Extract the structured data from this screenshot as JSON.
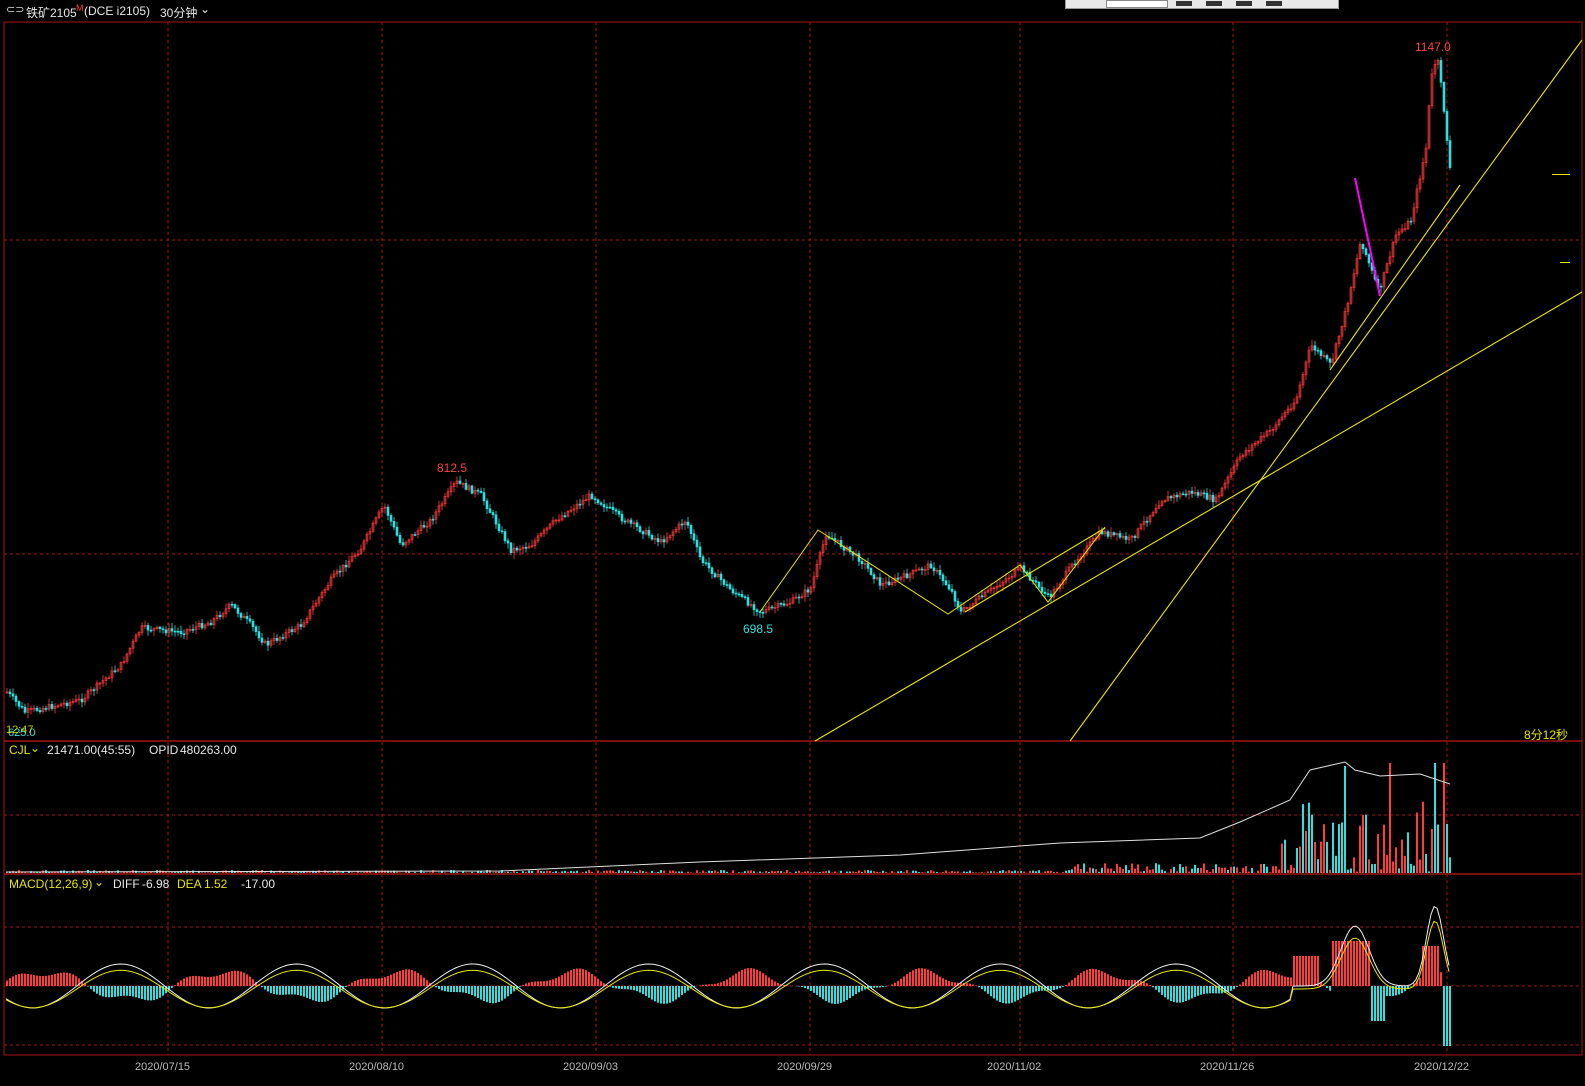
{
  "header": {
    "symbol_icon": "chart-link-icon",
    "instrument": "铁矿2105",
    "superscript": "M",
    "exchange_code": "(DCE i2105)",
    "period": "30分钟",
    "period_dropdown_icon": "chevron-down-icon"
  },
  "main_panel": {
    "high_label": "1147.0",
    "mid_high_label": "812.5",
    "low_label": "698.5",
    "left_bottom_label": "625.0",
    "left_bottom_overlay": "12:47",
    "countdown": "8分12秒"
  },
  "volume_panel": {
    "indicator": "CJL",
    "values": "21471.00(45:55)",
    "opid_label": "OPID",
    "opid_value": "480263.00"
  },
  "macd_panel": {
    "indicator": "MACD(12,26,9)",
    "diff_label": "DIFF",
    "diff_value": "-6.98",
    "dea_label": "DEA",
    "dea_value": "1.52",
    "macd_value": "-17.00"
  },
  "x_axis": {
    "dates": [
      "2020/07/15",
      "2020/08/10",
      "2020/09/03",
      "2020/09/29",
      "2020/11/02",
      "2020/11/26",
      "2020/12/22"
    ]
  },
  "colors": {
    "up": "#ff3b3b",
    "down": "#2de0e0",
    "grid": "#a31515",
    "trendline": "#e6e600",
    "annotation": "#ff00ff",
    "label_red": "#ff4040",
    "label_cyan": "#30e0e0"
  }
}
